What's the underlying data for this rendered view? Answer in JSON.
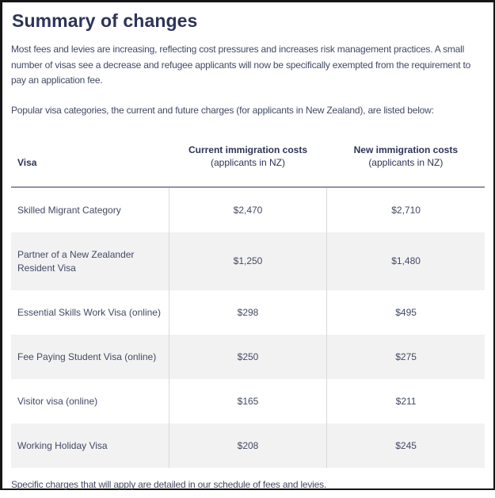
{
  "page": {
    "title": "Summary of changes",
    "intro": "Most fees and levies are increasing, reflecting cost pressures and increases risk management practices. A small number of visas see a decrease and refugee applicants will now be specifically exempted from the requirement to pay an application fee.",
    "table_intro": "Popular visa categories, the current and future charges (for applicants in New Zealand), are listed below:",
    "footer_note": "Specific charges that will apply are detailed in our schedule of fees and levies."
  },
  "table": {
    "columns": [
      {
        "label": "Visa",
        "sub": ""
      },
      {
        "label": "Current immigration costs",
        "sub": "(applicants in NZ)"
      },
      {
        "label": "New immigration costs",
        "sub": "(applicants in NZ)"
      }
    ],
    "rows": [
      {
        "visa": "Skilled Migrant Category",
        "current": "$2,470",
        "new": "$2,710"
      },
      {
        "visa": "Partner of a New Zealander Resident Visa",
        "current": "$1,250",
        "new": "$1,480"
      },
      {
        "visa": "Essential Skills Work Visa (online)",
        "current": "$298",
        "new": "$495"
      },
      {
        "visa": "Fee Paying Student Visa (online)",
        "current": "$250",
        "new": "$275"
      },
      {
        "visa": "Visitor visa (online)",
        "current": "$165",
        "new": "$211"
      },
      {
        "visa": "Working Holiday Visa",
        "current": "$208",
        "new": "$245"
      }
    ]
  },
  "colors": {
    "heading": "#2d3457",
    "body_text": "#434a63",
    "zebra_row": "#f2f2f3",
    "header_rule": "#9195a5",
    "column_divider": "#d8d9dd",
    "page_border": "#161616"
  }
}
